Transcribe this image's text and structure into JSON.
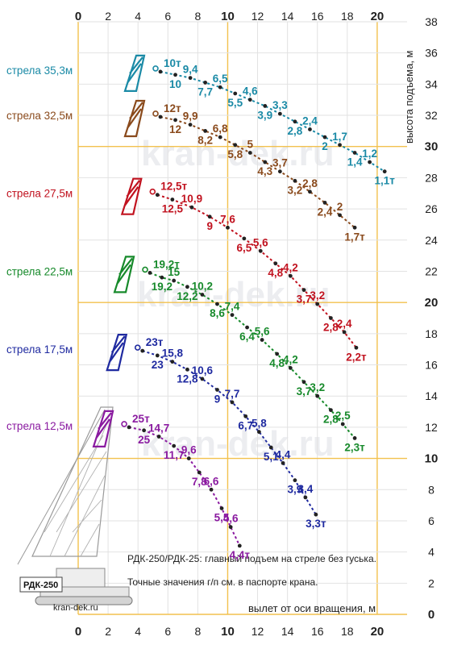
{
  "chart_data": {
    "type": "line",
    "xlabel": "вылет от оси вращения, м",
    "ylabel": "высота подъема, м",
    "xlim": [
      0,
      22
    ],
    "ylim": [
      0,
      38
    ],
    "x_ticks": [
      0,
      2,
      4,
      6,
      8,
      10,
      12,
      14,
      16,
      18,
      20
    ],
    "x_ticks_bold": [
      0,
      10,
      20
    ],
    "y_ticks": [
      0,
      2,
      4,
      6,
      8,
      10,
      12,
      14,
      16,
      18,
      20,
      22,
      24,
      26,
      28,
      30,
      32,
      34,
      36,
      38
    ],
    "y_ticks_bold": [
      0,
      10,
      20,
      30
    ],
    "grid": true,
    "series": [
      {
        "name": "стрела 35,3м",
        "color": "#1a8aa6",
        "points": [
          {
            "x": 5.5,
            "y": 34.8,
            "label": "10т"
          },
          {
            "x": 6.5,
            "y": 34.6,
            "label": "10"
          },
          {
            "x": 7.5,
            "y": 34.4,
            "label": "9,4"
          },
          {
            "x": 8.5,
            "y": 34.1,
            "label": "7,7"
          },
          {
            "x": 9.5,
            "y": 33.8,
            "label": "6,5"
          },
          {
            "x": 10.5,
            "y": 33.4,
            "label": "5,5"
          },
          {
            "x": 11.5,
            "y": 33.0,
            "label": "4,6"
          },
          {
            "x": 12.5,
            "y": 32.6,
            "label": "3,9"
          },
          {
            "x": 13.5,
            "y": 32.1,
            "label": "3,3"
          },
          {
            "x": 14.5,
            "y": 31.6,
            "label": "2,8"
          },
          {
            "x": 15.5,
            "y": 31.1,
            "label": "2,4"
          },
          {
            "x": 16.5,
            "y": 30.6,
            "label": "2"
          },
          {
            "x": 17.5,
            "y": 30.1,
            "label": "1,7"
          },
          {
            "x": 18.5,
            "y": 29.6,
            "label": "1,4"
          },
          {
            "x": 19.5,
            "y": 29.0,
            "label": "1,2"
          },
          {
            "x": 20.5,
            "y": 28.4,
            "label": "1,1т"
          }
        ]
      },
      {
        "name": "стрела 32,5м",
        "color": "#8a4a1c",
        "points": [
          {
            "x": 5.5,
            "y": 31.9,
            "label": "12т"
          },
          {
            "x": 6.5,
            "y": 31.7,
            "label": "12"
          },
          {
            "x": 7.5,
            "y": 31.4,
            "label": "9,9"
          },
          {
            "x": 8.5,
            "y": 31.0,
            "label": "8,2"
          },
          {
            "x": 9.5,
            "y": 30.6,
            "label": "6,8"
          },
          {
            "x": 10.5,
            "y": 30.1,
            "label": "5,8"
          },
          {
            "x": 11.5,
            "y": 29.6,
            "label": "5"
          },
          {
            "x": 12.5,
            "y": 29.0,
            "label": "4,3"
          },
          {
            "x": 13.5,
            "y": 28.4,
            "label": "3,7"
          },
          {
            "x": 14.5,
            "y": 27.8,
            "label": "3,2"
          },
          {
            "x": 15.5,
            "y": 27.1,
            "label": "2,8"
          },
          {
            "x": 16.5,
            "y": 26.4,
            "label": "2,4"
          },
          {
            "x": 17.5,
            "y": 25.6,
            "label": "2"
          },
          {
            "x": 18.5,
            "y": 24.8,
            "label": "1,7т"
          }
        ]
      },
      {
        "name": "стрела 27,5м",
        "color": "#c1121f",
        "points": [
          {
            "x": 5.3,
            "y": 26.9,
            "label": "12,5т"
          },
          {
            "x": 6.3,
            "y": 26.6,
            "label": "12,5"
          },
          {
            "x": 7.6,
            "y": 26.1,
            "label": "10,9"
          },
          {
            "x": 8.8,
            "y": 25.5,
            "label": "9"
          },
          {
            "x": 10.0,
            "y": 24.8,
            "label": "7,6"
          },
          {
            "x": 11.1,
            "y": 24.1,
            "label": "6,5"
          },
          {
            "x": 12.2,
            "y": 23.3,
            "label": "5,6"
          },
          {
            "x": 13.2,
            "y": 22.5,
            "label": "4,8"
          },
          {
            "x": 14.2,
            "y": 21.7,
            "label": "4,2"
          },
          {
            "x": 15.1,
            "y": 20.8,
            "label": "3,7"
          },
          {
            "x": 16.0,
            "y": 19.9,
            "label": "3,2"
          },
          {
            "x": 16.9,
            "y": 19.0,
            "label": "2,8"
          },
          {
            "x": 17.8,
            "y": 18.1,
            "label": "2,4"
          },
          {
            "x": 18.6,
            "y": 17.1,
            "label": "2,2т"
          }
        ]
      },
      {
        "name": "стрела 22,5м",
        "color": "#178a2b",
        "points": [
          {
            "x": 4.8,
            "y": 21.9,
            "label": "19,2т"
          },
          {
            "x": 5.6,
            "y": 21.6,
            "label": "19,2"
          },
          {
            "x": 6.4,
            "y": 21.4,
            "label": "15"
          },
          {
            "x": 7.3,
            "y": 21.0,
            "label": "12,2"
          },
          {
            "x": 8.3,
            "y": 20.5,
            "label": "10,2"
          },
          {
            "x": 9.3,
            "y": 19.9,
            "label": "8,6"
          },
          {
            "x": 10.3,
            "y": 19.2,
            "label": "7,4"
          },
          {
            "x": 11.3,
            "y": 18.4,
            "label": "6,4"
          },
          {
            "x": 12.3,
            "y": 17.6,
            "label": "5,6"
          },
          {
            "x": 13.3,
            "y": 16.7,
            "label": "4,8"
          },
          {
            "x": 14.2,
            "y": 15.8,
            "label": "4,2"
          },
          {
            "x": 15.1,
            "y": 14.9,
            "label": "3,7"
          },
          {
            "x": 16.0,
            "y": 14.0,
            "label": "3,2"
          },
          {
            "x": 16.9,
            "y": 13.1,
            "label": "2,8"
          },
          {
            "x": 17.7,
            "y": 12.2,
            "label": "2,5"
          },
          {
            "x": 18.5,
            "y": 11.3,
            "label": "2,3т"
          }
        ]
      },
      {
        "name": "стрела 17,5м",
        "color": "#1f2aa0",
        "points": [
          {
            "x": 4.3,
            "y": 16.9,
            "label": "23т"
          },
          {
            "x": 5.3,
            "y": 16.6,
            "label": "23"
          },
          {
            "x": 6.3,
            "y": 16.2,
            "label": "15,8"
          },
          {
            "x": 7.3,
            "y": 15.7,
            "label": "12,8"
          },
          {
            "x": 8.3,
            "y": 15.1,
            "label": "10,6"
          },
          {
            "x": 9.3,
            "y": 14.4,
            "label": "9"
          },
          {
            "x": 10.3,
            "y": 13.6,
            "label": "7,7"
          },
          {
            "x": 11.2,
            "y": 12.7,
            "label": "6,7"
          },
          {
            "x": 12.1,
            "y": 11.7,
            "label": "5,8"
          },
          {
            "x": 12.9,
            "y": 10.7,
            "label": "5,1"
          },
          {
            "x": 13.7,
            "y": 9.7,
            "label": "4,4"
          },
          {
            "x": 14.5,
            "y": 8.6,
            "label": "3,9"
          },
          {
            "x": 15.2,
            "y": 7.5,
            "label": "3,4"
          },
          {
            "x": 15.9,
            "y": 6.4,
            "label": "3,3т"
          }
        ]
      },
      {
        "name": "стрела 12,5м",
        "color": "#8a1aa0",
        "points": [
          {
            "x": 3.4,
            "y": 12.0,
            "label": "25т"
          },
          {
            "x": 4.4,
            "y": 11.8,
            "label": "25"
          },
          {
            "x": 5.4,
            "y": 11.4,
            "label": "14,7"
          },
          {
            "x": 6.4,
            "y": 10.8,
            "label": "11,7"
          },
          {
            "x": 7.4,
            "y": 10.0,
            "label": "9,6"
          },
          {
            "x": 8.1,
            "y": 9.1,
            "label": "7,8"
          },
          {
            "x": 8.9,
            "y": 8.0,
            "label": "6,6"
          },
          {
            "x": 9.6,
            "y": 6.8,
            "label": "5,5"
          },
          {
            "x": 10.2,
            "y": 5.6,
            "label": "4,6"
          },
          {
            "x": 10.8,
            "y": 4.4,
            "label": "4,4т"
          }
        ]
      }
    ],
    "notes": [
      "РДК-250/РДК-25: главный подъем на стреле без гуська.",
      "Точные значения г/п см. в паспорте крана."
    ],
    "crane_label": "РДК-250",
    "site_label": "kran-dek.ru",
    "watermark": "kran-dek.ru"
  }
}
